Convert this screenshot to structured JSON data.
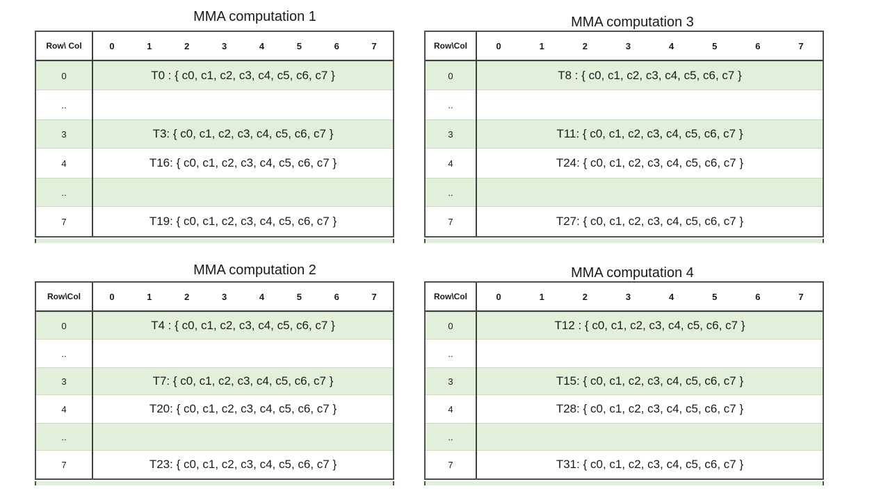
{
  "colors": {
    "row_shaded": "#e2efda",
    "row_plain": "#ffffff",
    "border_dark": "#4f4f4f",
    "text": "#1a1a1a"
  },
  "tables": [
    {
      "title": "MMA computation 1",
      "corner_label": "Row\\ Col",
      "col_headers": [
        "0",
        "1",
        "2",
        "3",
        "4",
        "5",
        "6",
        "7"
      ],
      "rows": [
        {
          "label": "0",
          "content": "T0 : { c0, c1, c2, c3, c4, c5, c6, c7 }",
          "shaded": true
        },
        {
          "label": "..",
          "content": "",
          "shaded": false
        },
        {
          "label": "3",
          "content": "T3: { c0, c1, c2, c3, c4, c5, c6, c7 }",
          "shaded": true
        },
        {
          "label": "4",
          "content": "T16: { c0, c1, c2, c3, c4, c5, c6, c7 }",
          "shaded": false
        },
        {
          "label": "..",
          "content": "",
          "shaded": true
        },
        {
          "label": "7",
          "content": "T19: { c0, c1, c2, c3, c4, c5, c6, c7 }",
          "shaded": false
        }
      ],
      "partial_row_shaded": true
    },
    {
      "title": "MMA computation 3",
      "corner_label": "Row\\Col",
      "col_headers": [
        "0",
        "1",
        "2",
        "3",
        "4",
        "5",
        "6",
        "7"
      ],
      "rows": [
        {
          "label": "0",
          "content": "T8 : { c0, c1, c2, c3, c4, c5, c6, c7 }",
          "shaded": true
        },
        {
          "label": "..",
          "content": "",
          "shaded": false
        },
        {
          "label": "3",
          "content": "T11: { c0, c1, c2, c3, c4, c5, c6, c7 }",
          "shaded": true
        },
        {
          "label": "4",
          "content": "T24: { c0, c1, c2, c3, c4, c5, c6, c7 }",
          "shaded": false
        },
        {
          "label": "..",
          "content": "",
          "shaded": true
        },
        {
          "label": "7",
          "content": "T27: { c0, c1, c2, c3, c4, c5, c6, c7 }",
          "shaded": false
        }
      ],
      "partial_row_shaded": true
    },
    {
      "title": "MMA computation 2",
      "corner_label": "Row\\Col",
      "col_headers": [
        "0",
        "1",
        "2",
        "3",
        "4",
        "5",
        "6",
        "7"
      ],
      "rows": [
        {
          "label": "0",
          "content": "T4 : { c0, c1, c2, c3, c4, c5, c6, c7 }",
          "shaded": true
        },
        {
          "label": "..",
          "content": "",
          "shaded": false
        },
        {
          "label": "3",
          "content": "T7: { c0, c1, c2, c3, c4, c5, c6, c7 }",
          "shaded": true
        },
        {
          "label": "4",
          "content": "T20: { c0, c1, c2, c3, c4, c5, c6, c7 }",
          "shaded": false
        },
        {
          "label": "..",
          "content": "",
          "shaded": true
        },
        {
          "label": "7",
          "content": "T23: { c0, c1, c2, c3, c4, c5, c6, c7 }",
          "shaded": false
        }
      ],
      "partial_row_shaded": true
    },
    {
      "title": "MMA computation 4",
      "corner_label": "Row\\Col",
      "col_headers": [
        "0",
        "1",
        "2",
        "3",
        "4",
        "5",
        "6",
        "7"
      ],
      "rows": [
        {
          "label": "0",
          "content": "T12 : { c0, c1, c2, c3, c4, c5, c6, c7 }",
          "shaded": true
        },
        {
          "label": "..",
          "content": "",
          "shaded": false
        },
        {
          "label": "3",
          "content": "T15: { c0, c1, c2, c3, c4, c5, c6, c7 }",
          "shaded": true
        },
        {
          "label": "4",
          "content": "T28: { c0, c1, c2, c3, c4, c5, c6, c7 }",
          "shaded": false
        },
        {
          "label": "..",
          "content": "",
          "shaded": true
        },
        {
          "label": "7",
          "content": "T31: { c0, c1, c2, c3, c4, c5, c6, c7 }",
          "shaded": false
        }
      ],
      "partial_row_shaded": true
    }
  ]
}
